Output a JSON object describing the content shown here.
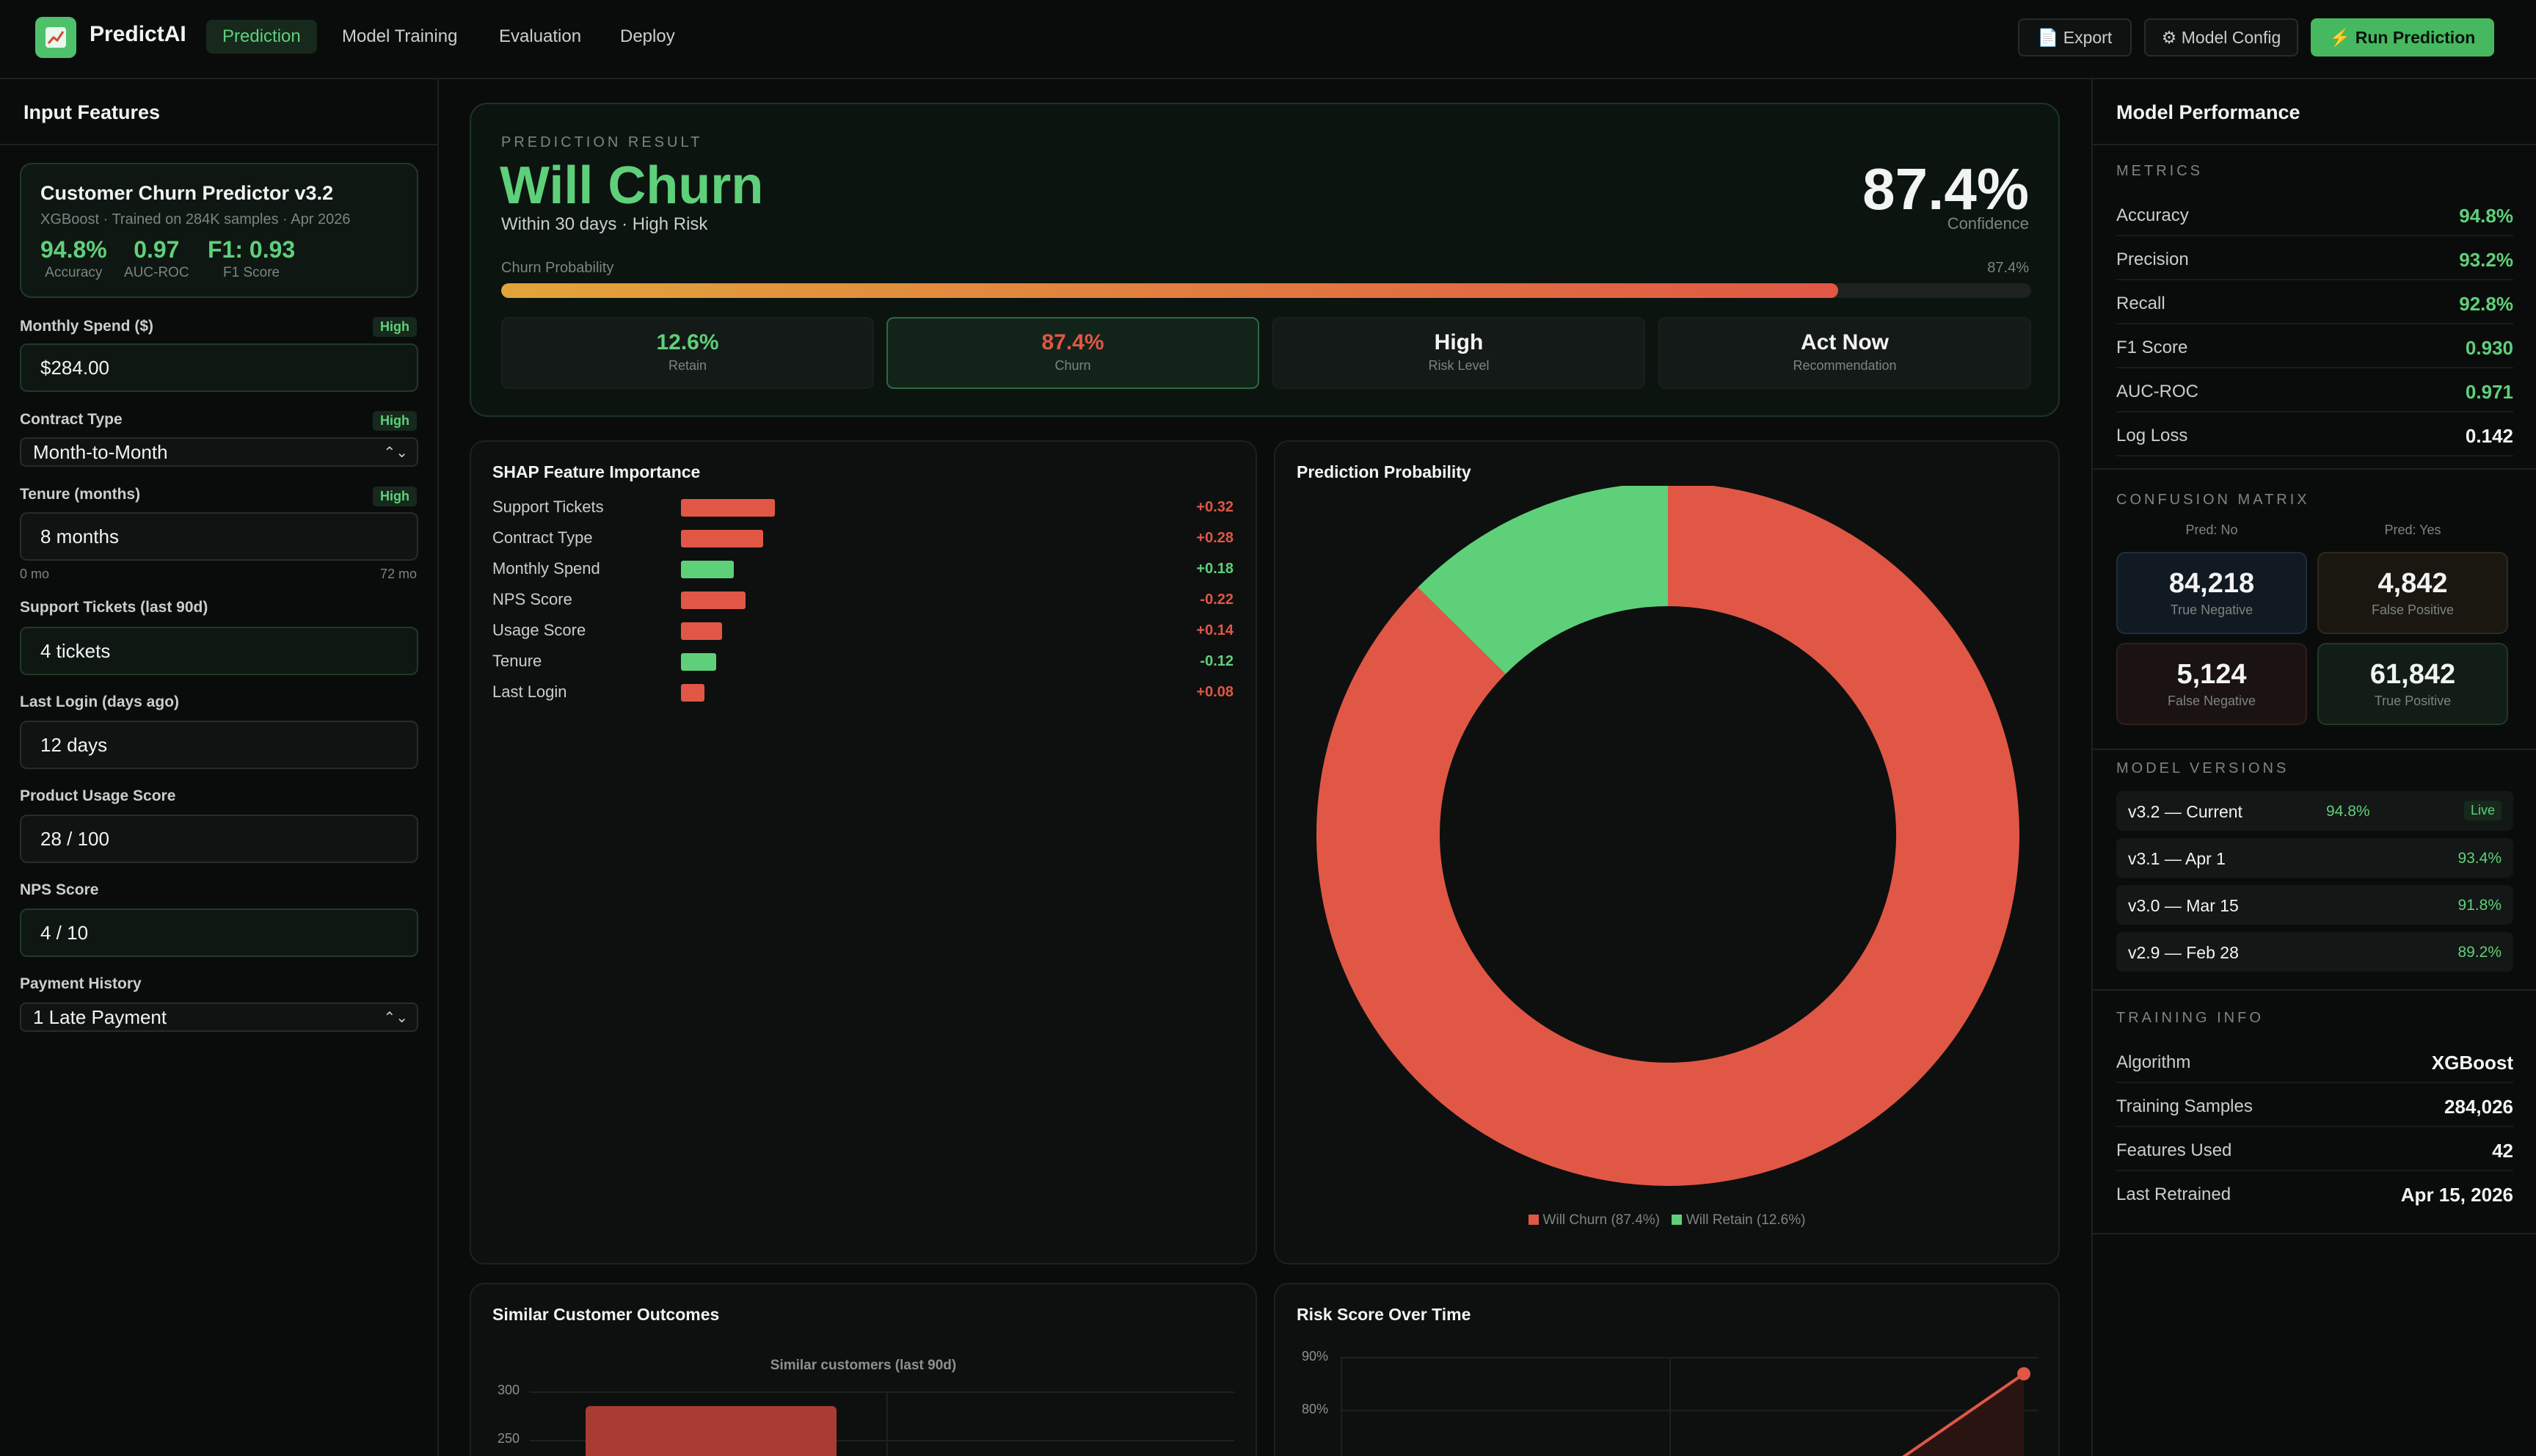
{
  "app": {
    "name": "PredictAI",
    "logo_icon": "chart-trend-icon"
  },
  "nav": {
    "tabs": [
      "Prediction",
      "Model Training",
      "Evaluation",
      "Deploy"
    ],
    "active": "Prediction"
  },
  "actions": {
    "export": "📄 Export",
    "config": "⚙ Model Config",
    "run": "⚡ Run Prediction"
  },
  "left": {
    "title": "Input Features",
    "model": {
      "name": "Customer Churn Predictor v3.2",
      "sub": "XGBoost · Trained on 284K samples · Apr 2026",
      "stats": [
        {
          "value": "94.8%",
          "label": "Accuracy"
        },
        {
          "value": "0.97",
          "label": "AUC-ROC"
        },
        {
          "value": "F1: 0.93",
          "label": "F1 Score"
        }
      ]
    },
    "fields": {
      "monthly_spend": {
        "label": "Monthly Spend ($)",
        "badge": "High",
        "value": "$284.00"
      },
      "contract": {
        "label": "Contract Type",
        "badge": "High",
        "value": "Month-to-Month"
      },
      "tenure": {
        "label": "Tenure (months)",
        "badge": "High",
        "value": "8 months",
        "range_min": "0 mo",
        "range_max": "72 mo"
      },
      "tickets": {
        "label": "Support Tickets (last 90d)",
        "value": "4 tickets"
      },
      "login": {
        "label": "Last Login (days ago)",
        "value": "12 days"
      },
      "usage": {
        "label": "Product Usage Score",
        "value": "28 / 100"
      },
      "nps": {
        "label": "NPS Score",
        "value": "4 / 10"
      },
      "payment": {
        "label": "Payment History",
        "value": "1 Late Payment"
      }
    }
  },
  "result": {
    "label": "PREDICTION RESULT",
    "title": "Will Churn",
    "sub": "Within 30 days · High Risk",
    "confidence": "87.4%",
    "confidence_label": "Confidence",
    "prob_label": "Churn Probability",
    "prob_value": "87.4%",
    "prob_fraction": 0.874,
    "boxes": [
      {
        "value": "12.6%",
        "label": "Retain",
        "color": "#5fd07a"
      },
      {
        "value": "87.4%",
        "label": "Churn",
        "color": "#e05745"
      },
      {
        "value": "High",
        "label": "Risk Level",
        "color": "#f2f4f3"
      },
      {
        "value": "Act Now",
        "label": "Recommendation",
        "color": "#f2f4f3"
      }
    ]
  },
  "shap": {
    "title": "SHAP Feature Importance",
    "rows": [
      {
        "name": "Support Tickets",
        "value": "+0.32",
        "magnitude": 0.32,
        "color": "#e05745"
      },
      {
        "name": "Contract Type",
        "value": "+0.28",
        "magnitude": 0.28,
        "color": "#e05745"
      },
      {
        "name": "Monthly Spend",
        "value": "+0.18",
        "magnitude": 0.18,
        "color": "#5fd07a"
      },
      {
        "name": "NPS Score",
        "value": "-0.22",
        "magnitude": 0.22,
        "color": "#e05745"
      },
      {
        "name": "Usage Score",
        "value": "+0.14",
        "magnitude": 0.14,
        "color": "#e05745"
      },
      {
        "name": "Tenure",
        "value": "-0.12",
        "magnitude": 0.12,
        "color": "#5fd07a"
      },
      {
        "name": "Last Login",
        "value": "+0.08",
        "magnitude": 0.08,
        "color": "#e05745"
      }
    ]
  },
  "donut": {
    "title": "Prediction Probability",
    "legend": [
      "Will Churn (87.4%)",
      "Will Retain (12.6%)"
    ]
  },
  "similar": {
    "title": "Similar Customer Outcomes",
    "chart_title": "Similar customers (last 90d)",
    "ticks": [
      "300",
      "250"
    ]
  },
  "risk": {
    "title": "Risk Score Over Time",
    "ticks": [
      "90%",
      "80%"
    ]
  },
  "chart_data": [
    {
      "type": "bar",
      "title": "SHAP Feature Importance",
      "categories": [
        "Support Tickets",
        "Contract Type",
        "Monthly Spend",
        "NPS Score",
        "Usage Score",
        "Tenure",
        "Last Login"
      ],
      "values": [
        0.32,
        0.28,
        0.18,
        -0.22,
        0.14,
        -0.12,
        0.08
      ]
    },
    {
      "type": "pie",
      "title": "Prediction Probability",
      "categories": [
        "Will Churn",
        "Will Retain"
      ],
      "values": [
        87.4,
        12.6
      ],
      "colors": [
        "#e05745",
        "#5fd07a"
      ]
    }
  ],
  "right": {
    "title": "Model Performance",
    "metrics_label": "METRICS",
    "metrics": [
      {
        "name": "Accuracy",
        "value": "94.8%",
        "color": "#5fd07a"
      },
      {
        "name": "Precision",
        "value": "93.2%",
        "color": "#5fd07a"
      },
      {
        "name": "Recall",
        "value": "92.8%",
        "color": "#5fd07a"
      },
      {
        "name": "F1 Score",
        "value": "0.930",
        "color": "#5fd07a"
      },
      {
        "name": "AUC-ROC",
        "value": "0.971",
        "color": "#5fd07a"
      },
      {
        "name": "Log Loss",
        "value": "0.142",
        "color": "#f2f4f3"
      }
    ],
    "cm_label": "CONFUSION MATRIX",
    "cm_heads": [
      "Pred: No",
      "Pred: Yes"
    ],
    "cm": [
      {
        "value": "84,218",
        "label": "True Negative",
        "bg": "#111a22",
        "border": "#1e2e3b"
      },
      {
        "value": "4,842",
        "label": "False Positive",
        "bg": "#1a1711",
        "border": "#2f2a1c"
      },
      {
        "value": "5,124",
        "label": "False Negative",
        "bg": "#1b1212",
        "border": "#311e1d"
      },
      {
        "value": "61,842",
        "label": "True Positive",
        "bg": "#111d15",
        "border": "#1f3a27"
      }
    ],
    "versions_label": "MODEL VERSIONS",
    "versions": [
      {
        "name": "v3.2 — Current",
        "acc": "94.8%",
        "badge": "Live"
      },
      {
        "name": "v3.1 — Apr 1",
        "acc": "93.4%"
      },
      {
        "name": "v3.0 — Mar 15",
        "acc": "91.8%"
      },
      {
        "name": "v2.9 — Feb 28",
        "acc": "89.2%"
      }
    ],
    "training_label": "TRAINING INFO",
    "training": [
      {
        "name": "Algorithm",
        "value": "XGBoost"
      },
      {
        "name": "Training Samples",
        "value": "284,026"
      },
      {
        "name": "Features Used",
        "value": "42"
      },
      {
        "name": "Last Retrained",
        "value": "Apr 15, 2026"
      }
    ]
  }
}
